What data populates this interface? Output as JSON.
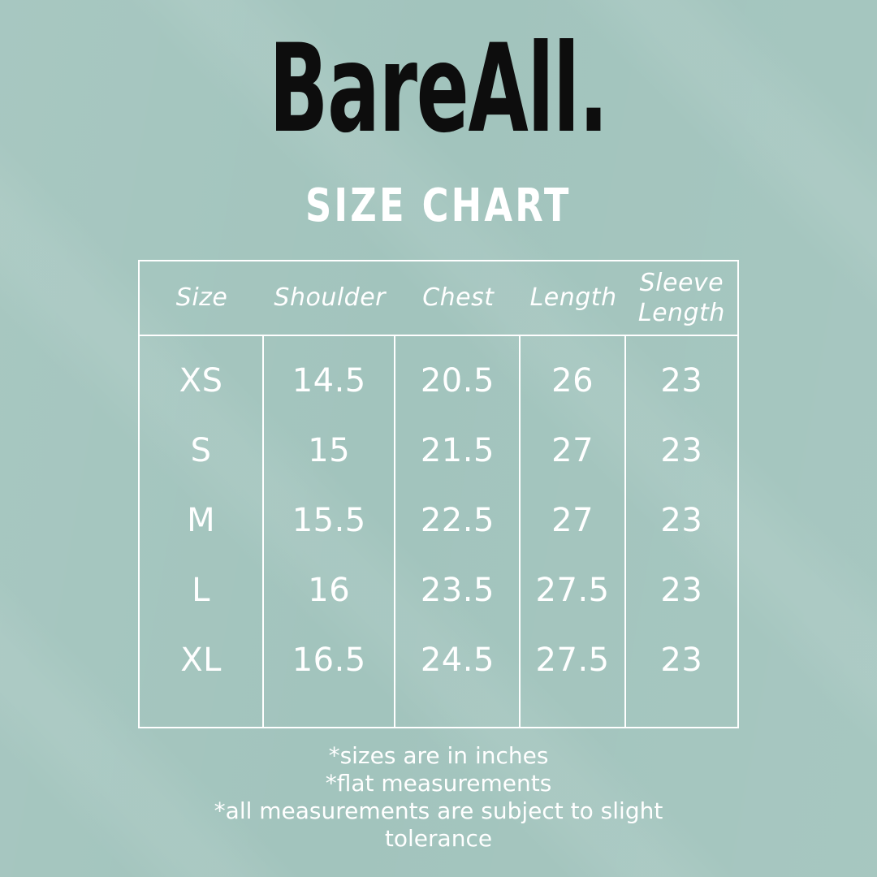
{
  "page": {
    "brand": "BareAll.",
    "subtitle": "SIZE CHART"
  },
  "chart_data": {
    "type": "table",
    "title": "SIZE CHART",
    "columns": [
      "Size",
      "Shoulder",
      "Chest",
      "Length",
      "Sleeve Length"
    ],
    "rows": [
      [
        "XS",
        "14.5",
        "20.5",
        "26",
        "23"
      ],
      [
        "S",
        "15",
        "21.5",
        "27",
        "23"
      ],
      [
        "M",
        "15.5",
        "22.5",
        "27",
        "23"
      ],
      [
        "L",
        "16",
        "23.5",
        "27.5",
        "23"
      ],
      [
        "XL",
        "16.5",
        "24.5",
        "27.5",
        "23"
      ]
    ],
    "units": "inches"
  },
  "notes": [
    "*sizes are in inches",
    "*flat measurements",
    "*all measurements are subject to slight tolerance"
  ],
  "colors": {
    "background": "#a2c4bd",
    "title_text": "#0d0d0d",
    "body_text": "#ffffff",
    "grid_line": "#ffffff"
  }
}
